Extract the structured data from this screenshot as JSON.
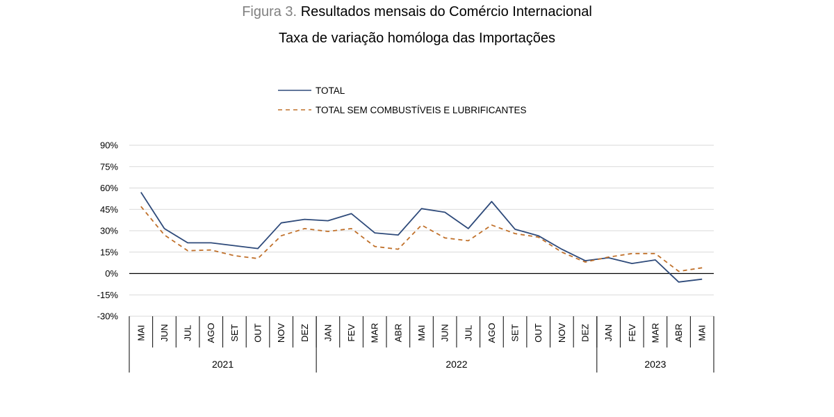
{
  "title": {
    "prefix": "Figura 3.",
    "main": "Resultados mensais do Comércio Internacional",
    "subtitle": "Taxa de variação homóloga das Importações"
  },
  "colors": {
    "total": "#2E4A7A",
    "sem_combustiveis": "#C0702A",
    "grid": "#D9D9D9",
    "axis": "#000000"
  },
  "chart_data": {
    "type": "line",
    "ylim": [
      -30,
      90
    ],
    "yticks": [
      -30,
      -15,
      0,
      15,
      30,
      45,
      60,
      75,
      90
    ],
    "ytick_labels": [
      "-30%",
      "-15%",
      "0%",
      "15%",
      "30%",
      "45%",
      "60%",
      "75%",
      "90%"
    ],
    "grid": true,
    "legend_position": "top-center",
    "categories": [
      "MAI",
      "JUN",
      "JUL",
      "AGO",
      "SET",
      "OUT",
      "NOV",
      "DEZ",
      "JAN",
      "FEV",
      "MAR",
      "ABR",
      "MAI",
      "JUN",
      "JUL",
      "AGO",
      "SET",
      "OUT",
      "NOV",
      "DEZ",
      "JAN",
      "FEV",
      "MAR",
      "ABR",
      "MAI"
    ],
    "years": [
      {
        "label": "2021",
        "count": 8
      },
      {
        "label": "2022",
        "count": 12
      },
      {
        "label": "2023",
        "count": 5
      }
    ],
    "series": [
      {
        "name": "TOTAL",
        "style": "solid",
        "values": [
          57,
          31.5,
          21.5,
          21.5,
          19.5,
          17.5,
          35.5,
          38,
          37,
          42,
          28.5,
          27,
          45.5,
          43,
          31.5,
          50.5,
          31,
          26.5,
          17,
          9,
          11,
          7,
          9.5,
          -6,
          -4
        ]
      },
      {
        "name": "TOTAL SEM COMBUSTÍVEIS E LUBRIFICANTES",
        "style": "dashed",
        "values": [
          47,
          27,
          16,
          16.5,
          12.5,
          10.5,
          26.5,
          31.5,
          29.5,
          31.5,
          19,
          17,
          34,
          25,
          23,
          34,
          28,
          25.5,
          15,
          8,
          11.5,
          14,
          14,
          1.5,
          4
        ]
      }
    ]
  }
}
